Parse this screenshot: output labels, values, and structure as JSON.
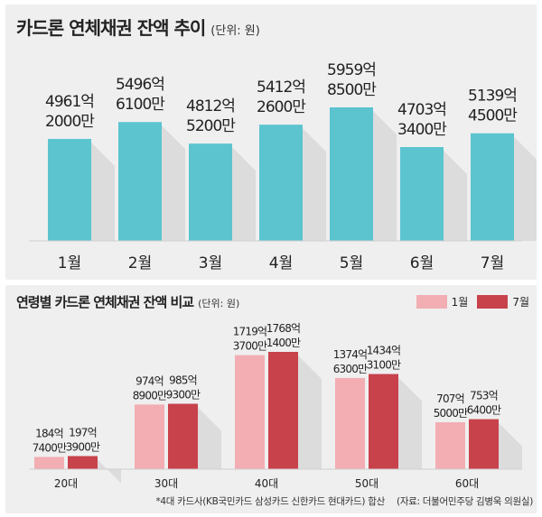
{
  "chart_data": [
    {
      "type": "bar",
      "title": "카드론 연체채권 잔액 추이",
      "unit": "(단위: 원)",
      "categories": [
        "1월",
        "2월",
        "3월",
        "4월",
        "5월",
        "6월",
        "7월"
      ],
      "values": [
        496120000000,
        549661000000,
        481252000000,
        541226000000,
        595985000000,
        470334000000,
        513945000000
      ],
      "data_labels": [
        [
          "4961억",
          "2000만"
        ],
        [
          "5496억",
          "6100만"
        ],
        [
          "4812억",
          "5200만"
        ],
        [
          "5412억",
          "2600만"
        ],
        [
          "5959억",
          "8500만"
        ],
        [
          "4703억",
          "3400만"
        ],
        [
          "5139억",
          "4500만"
        ]
      ],
      "color": "#5bc4cf"
    },
    {
      "type": "bar",
      "title": "연령별 카드론 연체채권 잔액 비교",
      "unit": "(단위: 원)",
      "categories": [
        "20대",
        "30대",
        "40대",
        "50대",
        "60대"
      ],
      "series": [
        {
          "name": "1월",
          "color": "#f2aeb3",
          "values": [
            18474000000,
            97489000000,
            171937000000,
            137463000000,
            70750000000
          ],
          "data_labels": [
            [
              "184억",
              "7400만"
            ],
            [
              "974억",
              "8900만"
            ],
            [
              "1719억",
              "3700만"
            ],
            [
              "1374억",
              "6300만"
            ],
            [
              "707억",
              "5000만"
            ]
          ]
        },
        {
          "name": "7월",
          "color": "#c8424c",
          "values": [
            19739000000,
            98593000000,
            176814000000,
            143431000000,
            75364000000
          ],
          "data_labels": [
            [
              "197억",
              "3900만"
            ],
            [
              "985억",
              "9300만"
            ],
            [
              "1768억",
              "1400만"
            ],
            [
              "1434억",
              "3100만"
            ],
            [
              "753억",
              "6400만"
            ]
          ]
        }
      ]
    }
  ],
  "footnote": "*4대 카드사(KB국민카드 삼성카드 신한카드 현대카드) 합산",
  "source": "자료: 더불어민주당 김병욱 의원실"
}
